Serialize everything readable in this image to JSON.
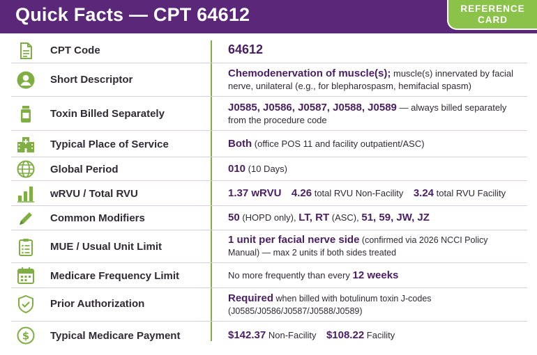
{
  "header": {
    "title": "Quick Facts — CPT 64612",
    "badge_line1": "REFERENCE",
    "badge_line2": "CARD"
  },
  "colors": {
    "brand_purple": "#5b2778",
    "accent_green": "#7fae42"
  },
  "rows": [
    {
      "icon": "document-icon",
      "label": "CPT Code",
      "code": "64612"
    },
    {
      "icon": "person-icon",
      "label": "Short Descriptor",
      "bold": "Chemodenervation of muscle(s);",
      "text": "muscle(s) innervated by facial nerve, unilateral (e.g., for blepharospasm, hemifacial spasm)"
    },
    {
      "icon": "vial-icon",
      "label": "Toxin Billed Separately",
      "bold": "J0585, J0586, J0587, J0588, J0589",
      "text": "— always billed separately from the procedure code"
    },
    {
      "icon": "hospital-icon",
      "label": "Typical Place of Service",
      "bold": "Both",
      "text": "(office POS 11 and facility outpatient/ASC)"
    },
    {
      "icon": "globe-icon",
      "label": "Global Period",
      "bold": "010",
      "text": "(10 Days)"
    },
    {
      "icon": "bar-chart-icon",
      "label": "wRVU / Total RVU",
      "wrvu": "1.37 wRVU",
      "nf_value": "4.26",
      "nf_label": "total RVU Non-Facility",
      "f_value": "3.24",
      "f_label": "total RVU Facility"
    },
    {
      "icon": "pencil-icon",
      "label": "Common Modifiers",
      "m1": "50",
      "m1_note": "(HOPD only),",
      "m2": "LT, RT",
      "m2_note": "(ASC),",
      "m3": "51, 59, JW, JZ"
    },
    {
      "icon": "clipboard-icon",
      "label": "MUE / Usual Unit Limit",
      "bold": "1 unit per facial nerve side",
      "text": "(confirmed via 2026 NCCI Policy Manual) — max 2 units if both sides treated"
    },
    {
      "icon": "calendar-icon",
      "label": "Medicare Frequency Limit",
      "text": "No more frequently than every",
      "bold": "12 weeks"
    },
    {
      "icon": "shield-check-icon",
      "label": "Prior Authorization",
      "bold": "Required",
      "text": "when billed with botulinum toxin J-codes (J0585/J0586/J0587/J0588/J0589)"
    },
    {
      "icon": "dollar-icon",
      "label": "Typical Medicare Payment",
      "nf_amount": "$142.37",
      "nf_label": "Non-Facility",
      "f_amount": "$108.22",
      "f_label": "Facility"
    }
  ]
}
